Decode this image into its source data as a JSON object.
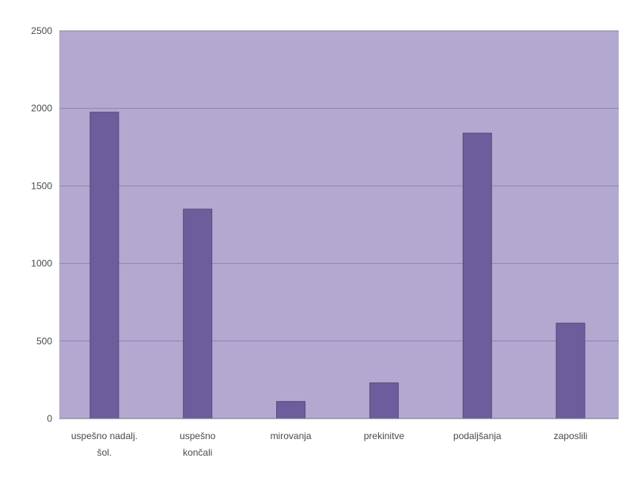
{
  "chart_data": {
    "type": "bar",
    "categories": [
      "uspešno nadalj. šol.",
      "uspešno končali",
      "mirovanja",
      "prekinitve",
      "podaljšanja",
      "zaposlili"
    ],
    "category_lines": [
      [
        "uspešno nadalj.",
        "šol."
      ],
      [
        "uspešno",
        "končali"
      ],
      [
        "mirovanja"
      ],
      [
        "prekinitve"
      ],
      [
        "podaljšanja"
      ],
      [
        "zaposlili"
      ]
    ],
    "values": [
      1975,
      1350,
      110,
      230,
      1840,
      615
    ],
    "ylim": [
      0,
      2500
    ],
    "yticks": [
      0,
      500,
      1000,
      1500,
      2000,
      2500
    ],
    "grid": true,
    "legend": "none",
    "colors": {
      "plot_background": "#b3a8cf",
      "bar": "#6c5e9c",
      "bar_edge": "#56497f",
      "gridline": "#8f84b0",
      "text": "#4a4a4a"
    }
  }
}
